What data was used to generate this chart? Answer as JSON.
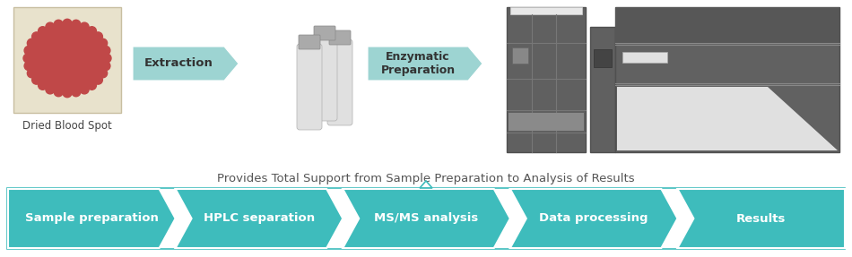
{
  "background_color": "#ffffff",
  "title_text": "Provides Total Support from Sample Preparation to Analysis of Results",
  "title_fontsize": 9.5,
  "title_color": "#555555",
  "dbs_label": "Dried Blood Spot",
  "arrow_labels": [
    "Sample preparation",
    "HPLC separation",
    "MS/MS analysis",
    "Data processing",
    "Results"
  ],
  "workflow_labels": [
    "Extraction",
    "Enzymatic\nPreparation"
  ],
  "workflow_arrow_color": "#9dd4d2",
  "box_border_color": "#3ebcbc",
  "chevron_color": "#3ebcbc",
  "figsize": [
    9.5,
    2.87
  ],
  "dpi": 100
}
